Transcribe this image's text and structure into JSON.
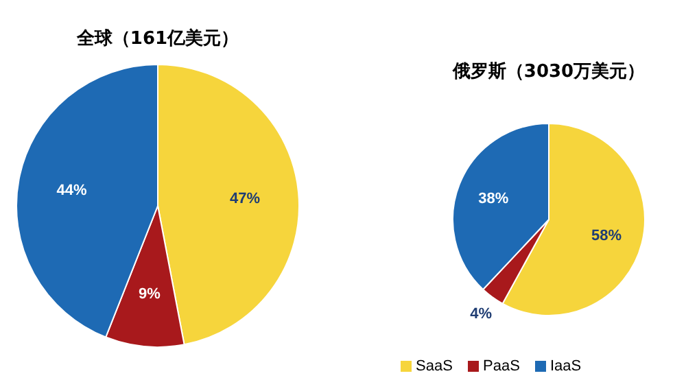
{
  "chart_data": [
    {
      "type": "pie",
      "title": "全球（161亿美元）",
      "categories": [
        null,
        null,
        null
      ],
      "values": [
        47,
        9,
        44
      ],
      "value_labels": [
        "47%",
        "9%",
        "44%"
      ],
      "colors": [
        "#f6d53c",
        "#a8191c",
        "#1e6ab4"
      ]
    },
    {
      "type": "pie",
      "title": "俄罗斯（3030万美元）",
      "categories": [
        "SaaS",
        "PaaS",
        "IaaS"
      ],
      "values": [
        58,
        4,
        38
      ],
      "value_labels": [
        "58%",
        "4%",
        "38%"
      ],
      "colors": [
        "#f6d53c",
        "#a8191c",
        "#1e6ab4"
      ],
      "legend": "bottom"
    }
  ]
}
